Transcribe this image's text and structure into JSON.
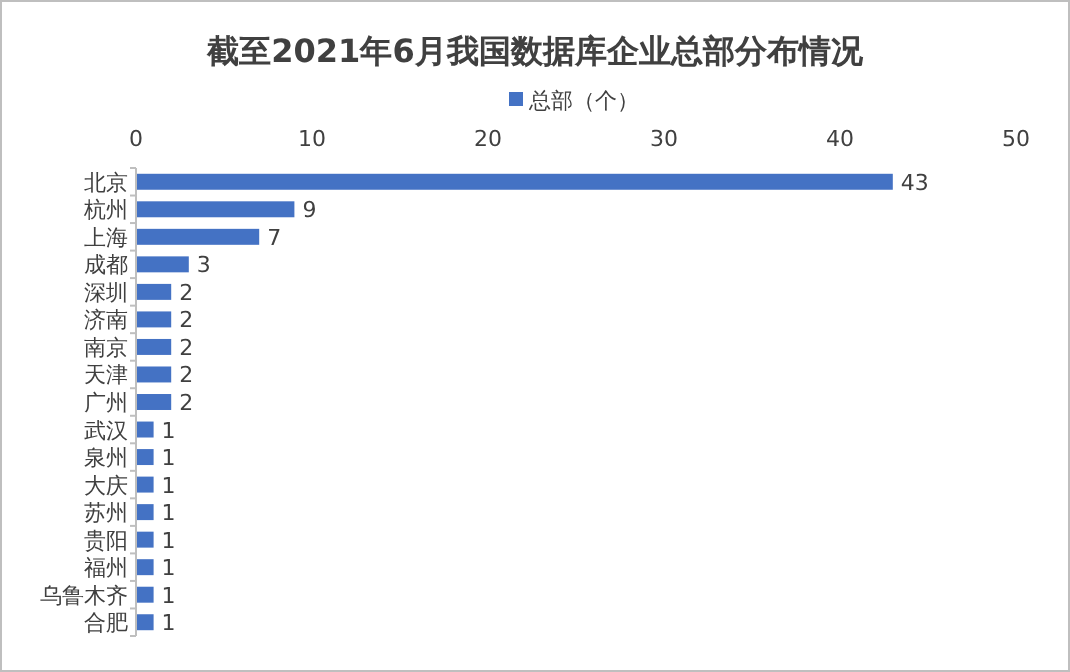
{
  "chart_data": {
    "type": "bar",
    "title": "截至2021年6月我国数据库企业总部分布情况",
    "orientation": "horizontal",
    "categories": [
      "北京",
      "杭州",
      "上海",
      "成都",
      "深圳",
      "济南",
      "南京",
      "天津",
      "广州",
      "武汉",
      "泉州",
      "大庆",
      "苏州",
      "贵阳",
      "福州",
      "乌鲁木齐",
      "合肥"
    ],
    "series": [
      {
        "name": "总部（个）",
        "color": "#4472c4",
        "values": [
          43,
          9,
          7,
          3,
          2,
          2,
          2,
          2,
          2,
          1,
          1,
          1,
          1,
          1,
          1,
          1,
          1
        ]
      }
    ],
    "xlim": [
      0,
      50
    ],
    "xticks": [
      0,
      10,
      20,
      30,
      40,
      50
    ],
    "data_labels": true,
    "legend": "top"
  }
}
